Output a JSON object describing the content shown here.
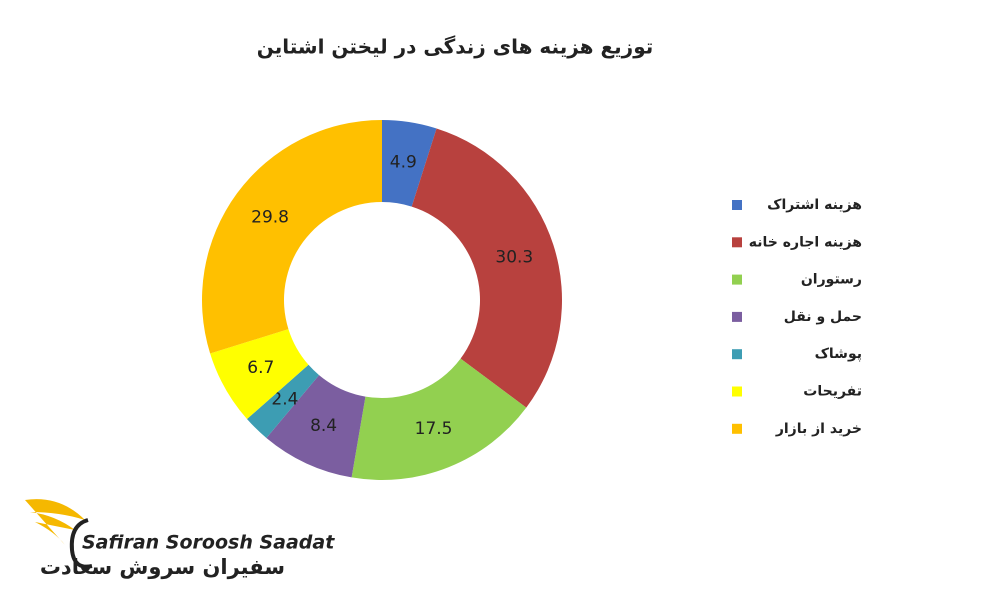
{
  "chart_data": {
    "type": "donut",
    "title": "توزیع هزینه های زندگی در لیختن اشتاین",
    "categories": [
      "هزینه اشتراک",
      "هزینه اجاره خانه",
      "رستوران",
      "حمل و نقل",
      "پوشاک",
      "تفریحات",
      "خرید از بازار"
    ],
    "values": [
      4.9,
      30.3,
      17.5,
      8.4,
      2.4,
      6.7,
      29.8
    ],
    "colors": [
      "#4472c4",
      "#b8413e",
      "#92d050",
      "#7b5ea0",
      "#3d9db3",
      "#ffff00",
      "#ffc000"
    ],
    "legend": "right"
  },
  "logo": {
    "latin": "Safiran Soroosh Saadat",
    "persian": "سفیران سروش سعادت"
  }
}
